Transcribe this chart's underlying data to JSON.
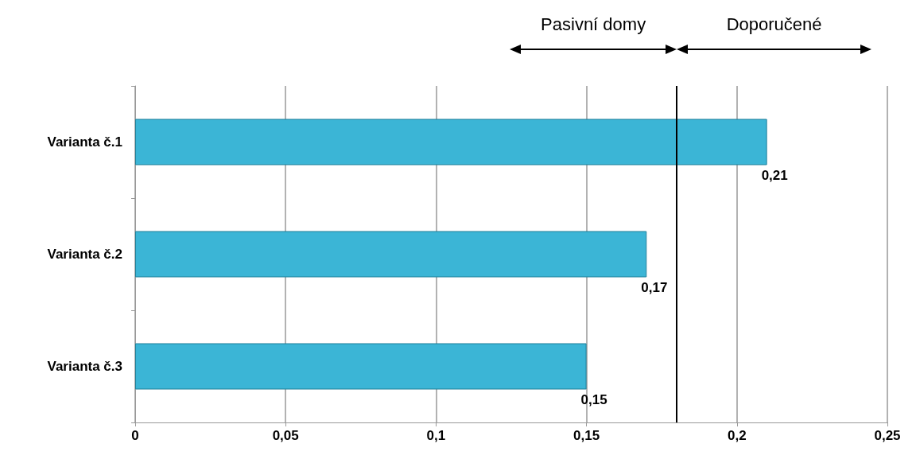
{
  "chart_data": {
    "type": "bar",
    "orientation": "horizontal",
    "categories": [
      "Varianta č.1",
      "Varianta č.2",
      "Varianta č.3"
    ],
    "values": [
      0.21,
      0.17,
      0.15
    ],
    "value_labels": [
      "0,21",
      "0,17",
      "0,15"
    ],
    "color": "#3bb5d6",
    "xlim": [
      0,
      0.25
    ],
    "xticks": [
      {
        "value": 0,
        "label": "0"
      },
      {
        "value": 0.05,
        "label": "0,05"
      },
      {
        "value": 0.1,
        "label": "0,1"
      },
      {
        "value": 0.15,
        "label": "0,15"
      },
      {
        "value": 0.2,
        "label": "0,2"
      },
      {
        "value": 0.25,
        "label": "0,25"
      }
    ],
    "grid": "x",
    "ref_lines": [
      {
        "axis": "x",
        "value": 0.18,
        "color": "#000000"
      }
    ],
    "annotations": [
      "Pasivní domy",
      "Doporučené"
    ]
  }
}
